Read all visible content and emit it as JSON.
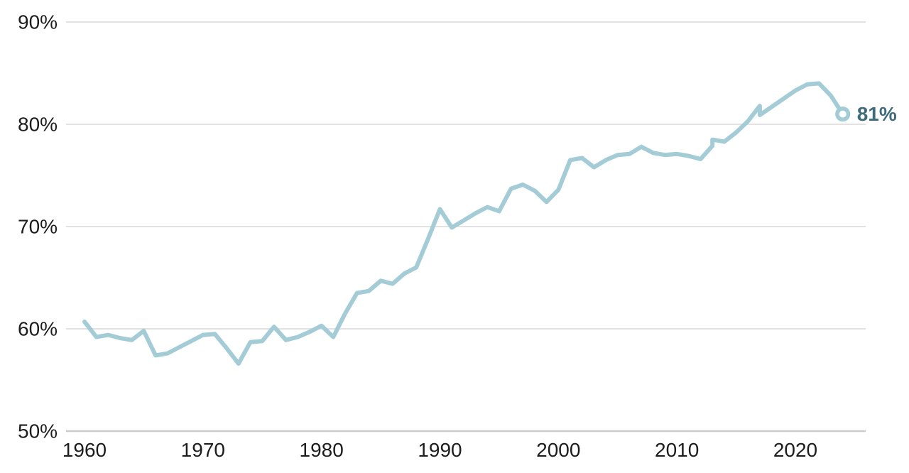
{
  "chart_data": {
    "type": "line",
    "title": "",
    "xlabel": "",
    "ylabel": "",
    "grid": "horizontal",
    "legend": "none",
    "xlim": [
      1958.4,
      2025.9
    ],
    "ylim": [
      50,
      90
    ],
    "x_ticks": [
      {
        "label": "1960",
        "value": 1960
      },
      {
        "label": "1970",
        "value": 1970
      },
      {
        "label": "1980",
        "value": 1980
      },
      {
        "label": "1990",
        "value": 1990
      },
      {
        "label": "2000",
        "value": 2000
      },
      {
        "label": "2010",
        "value": 2010
      },
      {
        "label": "2020",
        "value": 2020
      }
    ],
    "y_ticks": [
      {
        "label": "90%",
        "value": 90
      },
      {
        "label": "80%",
        "value": 80
      },
      {
        "label": "70%",
        "value": 70
      },
      {
        "label": "60%",
        "value": 60
      },
      {
        "label": "50%",
        "value": 50
      }
    ],
    "series": [
      {
        "name": "percentage-line",
        "points": [
          [
            1960,
            60.7
          ],
          [
            1961,
            59.2
          ],
          [
            1962,
            59.4
          ],
          [
            1963,
            59.1
          ],
          [
            1964,
            58.9
          ],
          [
            1965,
            59.8
          ],
          [
            1966,
            57.4
          ],
          [
            1967,
            57.6
          ],
          [
            1968,
            58.2
          ],
          [
            1969,
            58.8
          ],
          [
            1970,
            59.4
          ],
          [
            1971,
            59.5
          ],
          [
            1972,
            58.1
          ],
          [
            1973,
            56.6
          ],
          [
            1974,
            58.7
          ],
          [
            1975,
            58.8
          ],
          [
            1976,
            60.2
          ],
          [
            1977,
            58.9
          ],
          [
            1978,
            59.2
          ],
          [
            1979,
            59.7
          ],
          [
            1980,
            60.3
          ],
          [
            1981,
            59.2
          ],
          [
            1982,
            61.5
          ],
          [
            1983,
            63.5
          ],
          [
            1984,
            63.7
          ],
          [
            1985,
            64.7
          ],
          [
            1986,
            64.4
          ],
          [
            1987,
            65.4
          ],
          [
            1988,
            66.0
          ],
          [
            1989,
            68.8
          ],
          [
            1990,
            71.7
          ],
          [
            1991,
            69.9
          ],
          [
            1992,
            70.6
          ],
          [
            1993,
            71.3
          ],
          [
            1994,
            71.9
          ],
          [
            1995,
            71.5
          ],
          [
            1996,
            73.7
          ],
          [
            1997,
            74.1
          ],
          [
            1998,
            73.5
          ],
          [
            1999,
            72.4
          ],
          [
            2000,
            73.6
          ],
          [
            2001,
            76.5
          ],
          [
            2002,
            76.7
          ],
          [
            2003,
            75.8
          ],
          [
            2004,
            76.5
          ],
          [
            2005,
            77.0
          ],
          [
            2006,
            77.1
          ],
          [
            2007,
            77.8
          ],
          [
            2008,
            77.2
          ],
          [
            2009,
            77.0
          ],
          [
            2010,
            77.1
          ],
          [
            2011,
            76.9
          ],
          [
            2012,
            76.6
          ],
          [
            2013,
            77.9
          ],
          [
            2013,
            78.5
          ],
          [
            2014,
            78.3
          ],
          [
            2015,
            79.2
          ],
          [
            2016,
            80.3
          ],
          [
            2017,
            81.8
          ],
          [
            2017,
            80.9
          ],
          [
            2018,
            81.7
          ],
          [
            2019,
            82.5
          ],
          [
            2020,
            83.3
          ],
          [
            2021,
            83.9
          ],
          [
            2022,
            84.0
          ],
          [
            2023,
            82.8
          ],
          [
            2024,
            81.0
          ]
        ]
      }
    ],
    "end_point": {
      "year": 2024,
      "value": 81,
      "label": "81%",
      "marker": "open-circle"
    },
    "colors": {
      "line": "#a4ccd6",
      "end_label": "#3e6c7c",
      "marker_stroke": "#a4ccd6",
      "marker_fill": "#ffffff",
      "axis_text": "#1d1d1d",
      "gridline": "#e2e2e2",
      "baseline": "#cccccc",
      "background": "#ffffff"
    }
  }
}
